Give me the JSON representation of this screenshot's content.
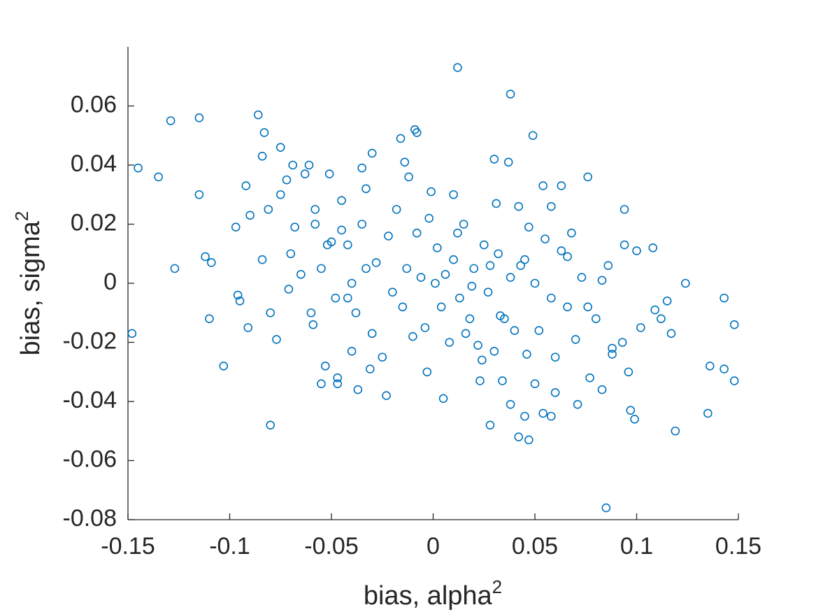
{
  "chart_data": {
    "type": "scatter",
    "xlabel": {
      "base": "bias, alpha",
      "sup": "2"
    },
    "ylabel": {
      "base": "bias, sigma",
      "sup": "2"
    },
    "xlim": [
      -0.15,
      0.15
    ],
    "ylim": [
      -0.08,
      0.08
    ],
    "xticks": [
      -0.15,
      -0.1,
      -0.05,
      0,
      0.05,
      0.1,
      0.15
    ],
    "yticks": [
      -0.08,
      -0.06,
      -0.04,
      -0.02,
      0,
      0.02,
      0.04,
      0.06
    ],
    "grid": false,
    "series": [
      {
        "color": "#0072bd",
        "x": [
          -0.148,
          -0.145,
          -0.135,
          -0.129,
          -0.127,
          -0.115,
          -0.115,
          -0.112,
          -0.11,
          -0.109,
          -0.103,
          -0.097,
          -0.096,
          -0.092,
          -0.091,
          -0.086,
          -0.084,
          -0.083,
          -0.08,
          -0.084,
          -0.081,
          -0.075,
          -0.077,
          -0.072,
          -0.071,
          -0.069,
          -0.063,
          -0.061,
          -0.058,
          -0.059,
          -0.055,
          -0.053,
          -0.051,
          -0.047,
          -0.047,
          -0.05,
          -0.045,
          -0.042,
          -0.04,
          -0.037,
          -0.035,
          -0.033,
          -0.03,
          -0.031,
          -0.023,
          -0.016,
          -0.014,
          -0.009,
          -0.008,
          -0.003,
          -0.001,
          0.001,
          0.005,
          0.01,
          0.012,
          0.012,
          0.016,
          0.019,
          0.023,
          0.024,
          0.028,
          0.028,
          0.03,
          0.031,
          0.033,
          0.034,
          0.037,
          0.038,
          0.038,
          0.042,
          0.042,
          0.045,
          0.047,
          0.047,
          0.049,
          0.05,
          0.054,
          0.054,
          0.058,
          0.058,
          0.06,
          0.063,
          0.066,
          0.068,
          0.071,
          0.076,
          0.077,
          0.083,
          0.085,
          0.086,
          0.088,
          0.093,
          0.094,
          0.094,
          0.096,
          0.097,
          0.099,
          0.1,
          0.102,
          0.108,
          0.109,
          0.112,
          0.115,
          0.117,
          0.119,
          0.124,
          0.135,
          0.136,
          0.143,
          0.143,
          0.148,
          0.148,
          -0.08,
          -0.07,
          -0.065,
          -0.06,
          -0.058,
          -0.055,
          -0.052,
          -0.048,
          -0.045,
          -0.042,
          -0.04,
          -0.038,
          -0.035,
          -0.033,
          -0.03,
          -0.028,
          -0.025,
          -0.022,
          -0.02,
          -0.018,
          -0.015,
          -0.013,
          -0.01,
          -0.008,
          -0.006,
          -0.004,
          -0.002,
          0.002,
          0.004,
          0.006,
          0.008,
          0.01,
          0.013,
          0.015,
          0.018,
          0.02,
          0.022,
          0.025,
          0.027,
          0.03,
          0.032,
          0.035,
          0.038,
          0.04,
          0.043,
          0.046,
          0.05,
          0.052,
          0.055,
          0.058,
          0.06,
          0.063,
          0.066,
          0.07,
          0.073,
          0.076,
          0.08,
          0.083,
          0.088,
          -0.09,
          -0.095,
          -0.075,
          -0.068,
          0.045,
          -0.012
        ],
        "values": [
          -0.017,
          0.039,
          0.036,
          0.055,
          0.005,
          0.056,
          0.03,
          0.009,
          -0.012,
          0.007,
          -0.028,
          0.019,
          -0.004,
          0.033,
          -0.015,
          0.057,
          0.043,
          0.051,
          -0.048,
          0.008,
          0.025,
          0.046,
          -0.019,
          0.035,
          -0.002,
          0.04,
          0.037,
          0.04,
          0.025,
          -0.014,
          -0.034,
          -0.028,
          0.037,
          -0.032,
          -0.034,
          0.014,
          0.028,
          -0.005,
          -0.023,
          -0.036,
          0.039,
          0.032,
          0.044,
          -0.029,
          -0.038,
          0.049,
          0.041,
          0.052,
          0.051,
          -0.03,
          0.031,
          0.0,
          -0.039,
          0.03,
          0.073,
          0.017,
          -0.017,
          -0.001,
          -0.033,
          -0.026,
          0.006,
          -0.048,
          0.042,
          0.027,
          -0.011,
          -0.033,
          0.041,
          0.064,
          -0.041,
          0.026,
          -0.052,
          -0.045,
          -0.053,
          0.019,
          0.05,
          -0.034,
          0.033,
          -0.044,
          -0.045,
          0.026,
          -0.037,
          0.033,
          0.009,
          0.017,
          -0.041,
          0.036,
          -0.032,
          -0.036,
          -0.076,
          0.006,
          -0.022,
          -0.02,
          0.025,
          0.013,
          -0.03,
          -0.043,
          -0.046,
          0.011,
          -0.015,
          0.012,
          -0.009,
          -0.012,
          -0.006,
          -0.017,
          -0.05,
          0.0,
          -0.044,
          -0.028,
          -0.005,
          -0.029,
          -0.033,
          -0.014,
          -0.01,
          0.01,
          0.003,
          -0.01,
          0.02,
          0.005,
          0.013,
          -0.005,
          0.018,
          0.013,
          0.0,
          -0.01,
          0.02,
          0.005,
          -0.017,
          0.007,
          -0.025,
          0.016,
          -0.003,
          0.025,
          -0.008,
          0.005,
          -0.018,
          0.017,
          0.002,
          -0.015,
          0.022,
          0.012,
          -0.008,
          0.003,
          -0.02,
          0.008,
          -0.005,
          0.02,
          -0.012,
          0.005,
          -0.021,
          0.013,
          -0.003,
          -0.023,
          0.01,
          -0.012,
          0.002,
          -0.016,
          0.006,
          -0.024,
          0.0,
          -0.016,
          0.015,
          -0.005,
          -0.025,
          0.011,
          -0.008,
          -0.019,
          0.002,
          -0.008,
          -0.012,
          0.001,
          -0.024,
          0.023,
          -0.006,
          0.03,
          0.019,
          0.008,
          0.036
        ]
      }
    ]
  }
}
